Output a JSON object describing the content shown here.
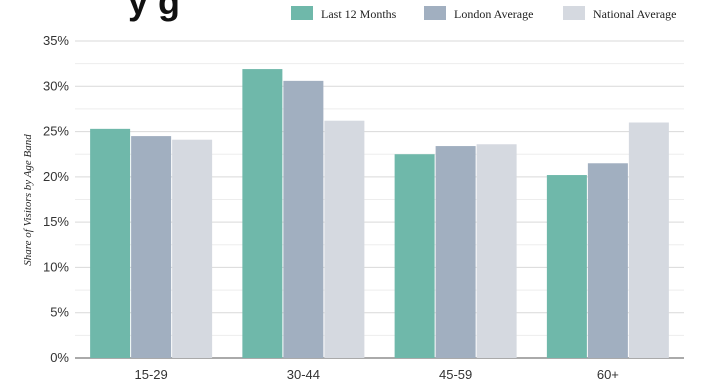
{
  "chart_data": {
    "type": "bar",
    "title": "y g",
    "categories": [
      "15-29",
      "30-44",
      "45-59",
      "60+"
    ],
    "series": [
      {
        "name": "Last 12 Months",
        "color": "#6fb8aa",
        "values": [
          25.3,
          31.9,
          22.5,
          20.2
        ]
      },
      {
        "name": "London Average",
        "color": "#a1afc0",
        "values": [
          24.5,
          30.6,
          23.4,
          21.5
        ]
      },
      {
        "name": "National Average",
        "color": "#d5d9e0",
        "values": [
          24.1,
          26.2,
          23.6,
          26.0
        ]
      }
    ],
    "ylabel": "Share of Visitors by Age Band",
    "ylim": [
      0,
      35
    ],
    "yticks": [
      0,
      5,
      10,
      15,
      20,
      25,
      30,
      35
    ],
    "ytick_labels": [
      "0%",
      "5%",
      "10%",
      "15%",
      "20%",
      "25%",
      "30%",
      "35%"
    ],
    "grid": true,
    "minor_grid": true,
    "legend_position": "top-right"
  }
}
